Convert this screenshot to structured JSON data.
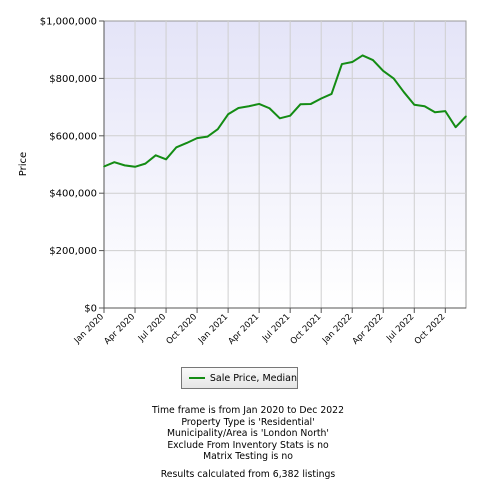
{
  "chart_data": {
    "type": "line",
    "ylabel": "Price",
    "ylim": [
      0,
      1000000
    ],
    "yticks": [
      {
        "value": 0,
        "label": "$0"
      },
      {
        "value": 200000,
        "label": "$200,000"
      },
      {
        "value": 400000,
        "label": "$400,000"
      },
      {
        "value": 600000,
        "label": "$600,000"
      },
      {
        "value": 800000,
        "label": "$800,000"
      },
      {
        "value": 1000000,
        "label": "$1,000,000"
      }
    ],
    "xticks": [
      {
        "index": 0,
        "label": "Jan 2020"
      },
      {
        "index": 3,
        "label": "Apr 2020"
      },
      {
        "index": 6,
        "label": "Jul 2020"
      },
      {
        "index": 9,
        "label": "Oct 2020"
      },
      {
        "index": 12,
        "label": "Jan 2021"
      },
      {
        "index": 15,
        "label": "Apr 2021"
      },
      {
        "index": 18,
        "label": "Jul 2021"
      },
      {
        "index": 21,
        "label": "Oct 2021"
      },
      {
        "index": 24,
        "label": "Jan 2022"
      },
      {
        "index": 27,
        "label": "Apr 2022"
      },
      {
        "index": 30,
        "label": "Jul 2022"
      },
      {
        "index": 33,
        "label": "Oct 2022"
      }
    ],
    "grid": true,
    "legend_position": "bottom-center",
    "series": [
      {
        "name": "Sale Price, Median",
        "color": "#148c14",
        "x": [
          "Jan 2020",
          "Feb 2020",
          "Mar 2020",
          "Apr 2020",
          "May 2020",
          "Jun 2020",
          "Jul 2020",
          "Aug 2020",
          "Sep 2020",
          "Oct 2020",
          "Nov 2020",
          "Dec 2020",
          "Jan 2021",
          "Feb 2021",
          "Mar 2021",
          "Apr 2021",
          "May 2021",
          "Jun 2021",
          "Jul 2021",
          "Aug 2021",
          "Sep 2021",
          "Oct 2021",
          "Nov 2021",
          "Dec 2021",
          "Jan 2022",
          "Feb 2022",
          "Mar 2022",
          "Apr 2022",
          "May 2022",
          "Jun 2022",
          "Jul 2022",
          "Aug 2022",
          "Sep 2022",
          "Oct 2022",
          "Nov 2022",
          "Dec 2022"
        ],
        "values": [
          493000,
          508000,
          497000,
          492000,
          503000,
          532000,
          518000,
          560000,
          575000,
          592000,
          597000,
          623000,
          675000,
          697000,
          703000,
          711000,
          696000,
          661000,
          670000,
          710000,
          711000,
          730000,
          746000,
          850000,
          857000,
          880000,
          864000,
          826000,
          800000,
          752000,
          708000,
          703000,
          682000,
          686000,
          630000,
          668000
        ]
      }
    ]
  },
  "notes": [
    "Time frame is from Jan 2020 to Dec 2022",
    "Property Type is 'Residential'",
    "Municipality/Area is 'London North'",
    "Exclude From Inventory Stats is no",
    "Matrix Testing is no",
    "Results calculated from 6,382 listings"
  ]
}
